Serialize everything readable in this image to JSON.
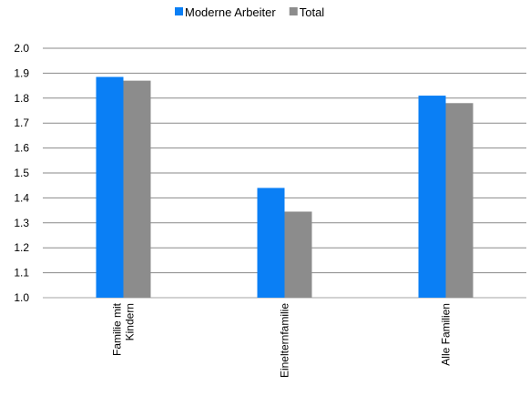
{
  "chart_data": {
    "type": "bar",
    "title": "",
    "xlabel": "",
    "ylabel": "",
    "categories": [
      [
        "Familie mit",
        "Kindern"
      ],
      [
        "Einelternfamilie"
      ],
      [
        "Alle Familien"
      ]
    ],
    "series": [
      {
        "name": "Moderne Arbeiter",
        "color": "#0a7ff5",
        "values": [
          1.885,
          1.44,
          1.81
        ]
      },
      {
        "name": "Total",
        "color": "#8c8c8c",
        "values": [
          1.87,
          1.345,
          1.78
        ]
      }
    ],
    "ylim": [
      1.0,
      2.0
    ],
    "yticks": [
      "1.0",
      "1.1",
      "1.2",
      "1.3",
      "1.4",
      "1.5",
      "1.6",
      "1.7",
      "1.8",
      "1.9",
      "2.0"
    ],
    "grid": true,
    "legend_position": "top",
    "category_label_rotation": "vertical"
  }
}
